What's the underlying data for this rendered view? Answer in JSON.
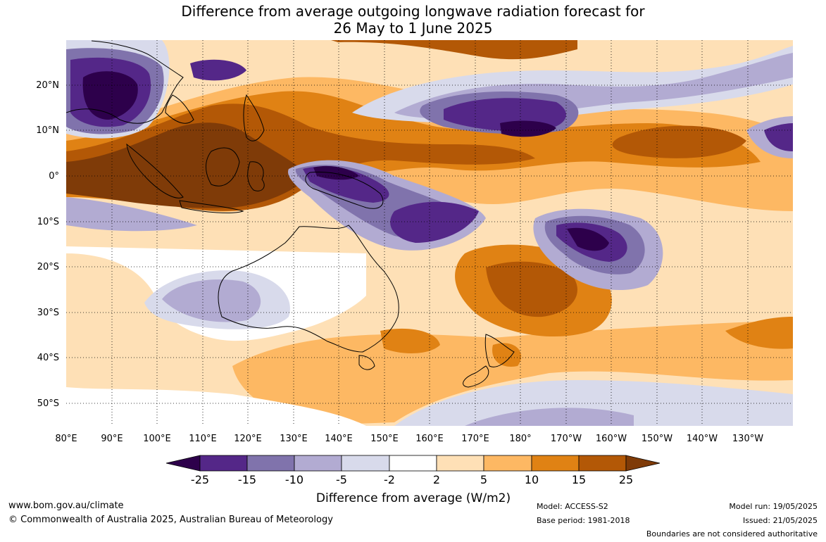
{
  "title": {
    "line1": "Difference from average outgoing longwave radiation forecast for",
    "line2": "26 May to 1 June 2025"
  },
  "map": {
    "longitude_labels": [
      "80°E",
      "90°E",
      "100°E",
      "110°E",
      "120°E",
      "130°E",
      "140°E",
      "150°E",
      "160°E",
      "170°E",
      "180°",
      "170°W",
      "160°W",
      "150°W",
      "140°W",
      "130°W"
    ],
    "latitude_labels": [
      "20°N",
      "10°N",
      "0°",
      "10°S",
      "20°S",
      "30°S",
      "40°S",
      "50°S"
    ],
    "longitude_range": [
      80,
      235
    ],
    "latitude_range": [
      -55,
      30
    ],
    "grid": "dotted"
  },
  "legend": {
    "title": "Difference from average (W/m2)",
    "ticks": [
      "-25",
      "-15",
      "-10",
      "-5",
      "-2",
      "2",
      "5",
      "10",
      "15",
      "25"
    ],
    "colors": {
      "below_-25": "#2d004b",
      "-25_-15": "#542788",
      "-15_-10": "#8073ac",
      "-10_-5": "#b2abd2",
      "-5_-2": "#d8daeb",
      "-2_2": "#ffffff",
      "2_5": "#fee0b6",
      "5_10": "#fdb863",
      "10_15": "#e08214",
      "15_25": "#b35806",
      "above_25": "#7f3b08"
    }
  },
  "footer": {
    "url": "www.bom.gov.au/climate",
    "copyright": "© Commonwealth of Australia 2025, Australian Bureau of Meteorology",
    "model": "Model: ACCESS-S2",
    "base_period": "Base period: 1981-2018",
    "model_run": "Model run: 19/05/2025",
    "issued": "Issued: 21/05/2025",
    "boundaries_note": "Boundaries are not considered authoritative"
  }
}
